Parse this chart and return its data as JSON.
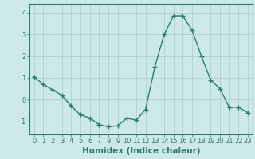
{
  "x": [
    0,
    1,
    2,
    3,
    4,
    5,
    6,
    7,
    8,
    9,
    10,
    11,
    12,
    13,
    14,
    15,
    16,
    17,
    18,
    19,
    20,
    21,
    22,
    23
  ],
  "y": [
    1.05,
    0.7,
    0.45,
    0.2,
    -0.3,
    -0.7,
    -0.85,
    -1.15,
    -1.25,
    -1.2,
    -0.85,
    -0.95,
    -0.45,
    1.5,
    3.0,
    3.85,
    3.85,
    3.2,
    2.0,
    0.9,
    0.5,
    -0.35,
    -0.35,
    -0.6
  ],
  "line_color": "#2d7d6e",
  "marker": "+",
  "markersize": 4,
  "linewidth": 1.0,
  "xlabel": "Humidex (Indice chaleur)",
  "xlim": [
    -0.5,
    23.5
  ],
  "ylim": [
    -1.6,
    4.4
  ],
  "yticks": [
    -1,
    0,
    1,
    2,
    3,
    4
  ],
  "xticks": [
    0,
    1,
    2,
    3,
    4,
    5,
    6,
    7,
    8,
    9,
    10,
    11,
    12,
    13,
    14,
    15,
    16,
    17,
    18,
    19,
    20,
    21,
    22,
    23
  ],
  "background_color": "#cce8e8",
  "grid_color": "#aacccc",
  "axis_color": "#2d7d6e",
  "tick_label_fontsize": 6.0,
  "xlabel_fontsize": 7.5
}
